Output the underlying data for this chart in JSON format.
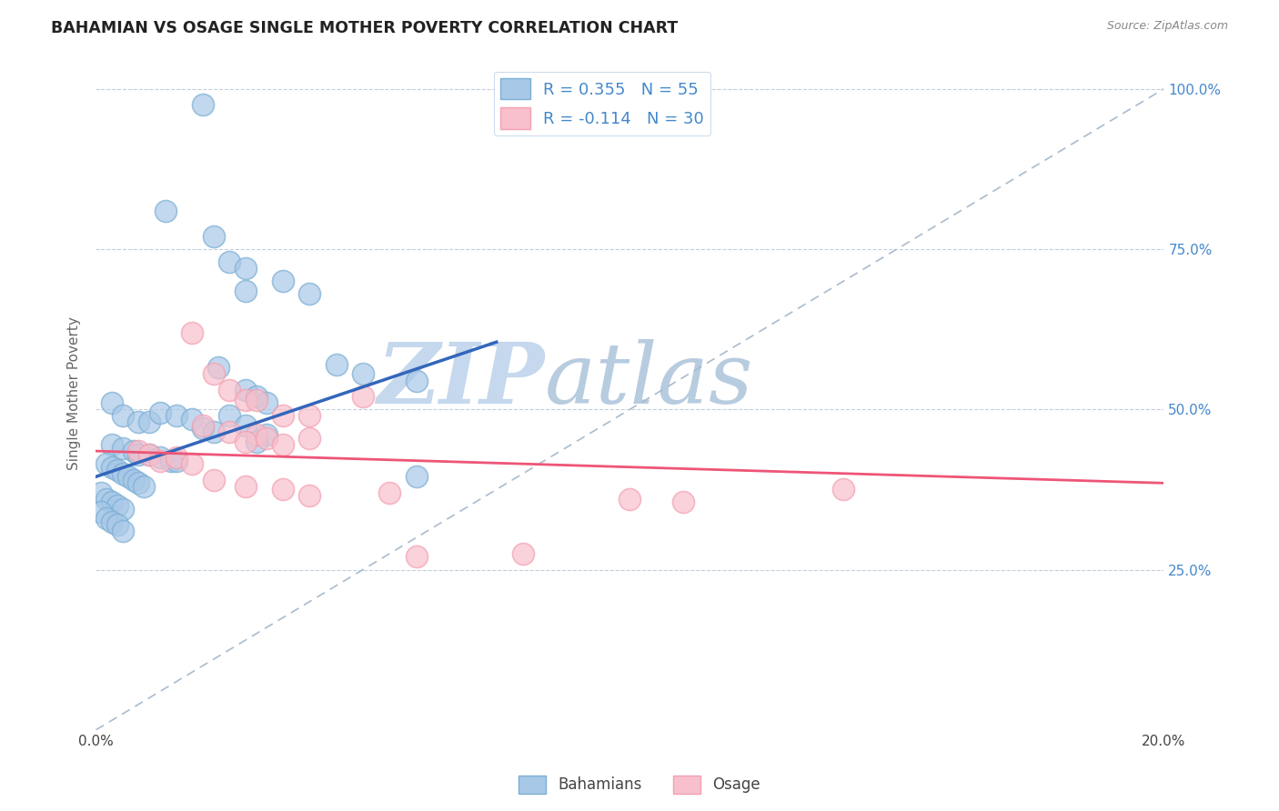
{
  "title": "BAHAMIAN VS OSAGE SINGLE MOTHER POVERTY CORRELATION CHART",
  "source": "Source: ZipAtlas.com",
  "ylabel": "Single Mother Poverty",
  "xlim": [
    0.0,
    0.2
  ],
  "ylim": [
    0.0,
    1.05
  ],
  "legend_label1": "Bahamians",
  "legend_label2": "Osage",
  "blue_color": "#7BAFD4",
  "pink_color": "#F4A0B0",
  "blue_scatter_face": "#A8C8E8",
  "pink_scatter_face": "#F8C0CC",
  "blue_line_color": "#3366BB",
  "pink_line_color": "#EE5577",
  "dashed_line_color": "#AABBCC",
  "title_color": "#222222",
  "right_yaxis_color": "#4488CC",
  "watermark_color": "#D8E8F4",
  "R_blue": 0.355,
  "N_blue": 55,
  "R_pink": -0.114,
  "N_pink": 30,
  "blue_line_x": [
    0.0,
    0.075
  ],
  "blue_line_y": [
    0.395,
    0.605
  ],
  "pink_line_x": [
    0.0,
    0.2
  ],
  "pink_line_y": [
    0.435,
    0.385
  ],
  "blue_scatter": [
    [
      0.02,
      0.975
    ],
    [
      0.013,
      0.81
    ],
    [
      0.022,
      0.77
    ],
    [
      0.025,
      0.73
    ],
    [
      0.028,
      0.72
    ],
    [
      0.028,
      0.685
    ],
    [
      0.035,
      0.7
    ],
    [
      0.04,
      0.68
    ],
    [
      0.045,
      0.57
    ],
    [
      0.05,
      0.555
    ],
    [
      0.023,
      0.565
    ],
    [
      0.06,
      0.545
    ],
    [
      0.028,
      0.53
    ],
    [
      0.03,
      0.52
    ],
    [
      0.032,
      0.51
    ],
    [
      0.003,
      0.51
    ],
    [
      0.005,
      0.49
    ],
    [
      0.008,
      0.48
    ],
    [
      0.01,
      0.48
    ],
    [
      0.012,
      0.495
    ],
    [
      0.015,
      0.49
    ],
    [
      0.018,
      0.485
    ],
    [
      0.02,
      0.47
    ],
    [
      0.022,
      0.465
    ],
    [
      0.025,
      0.49
    ],
    [
      0.028,
      0.475
    ],
    [
      0.032,
      0.46
    ],
    [
      0.03,
      0.45
    ],
    [
      0.003,
      0.445
    ],
    [
      0.005,
      0.44
    ],
    [
      0.007,
      0.435
    ],
    [
      0.008,
      0.43
    ],
    [
      0.01,
      0.43
    ],
    [
      0.012,
      0.425
    ],
    [
      0.014,
      0.42
    ],
    [
      0.015,
      0.42
    ],
    [
      0.002,
      0.415
    ],
    [
      0.003,
      0.41
    ],
    [
      0.004,
      0.405
    ],
    [
      0.005,
      0.4
    ],
    [
      0.006,
      0.395
    ],
    [
      0.007,
      0.39
    ],
    [
      0.008,
      0.385
    ],
    [
      0.009,
      0.38
    ],
    [
      0.001,
      0.37
    ],
    [
      0.002,
      0.36
    ],
    [
      0.003,
      0.355
    ],
    [
      0.004,
      0.35
    ],
    [
      0.005,
      0.345
    ],
    [
      0.001,
      0.34
    ],
    [
      0.002,
      0.33
    ],
    [
      0.003,
      0.325
    ],
    [
      0.004,
      0.32
    ],
    [
      0.005,
      0.31
    ],
    [
      0.06,
      0.395
    ]
  ],
  "pink_scatter": [
    [
      0.018,
      0.62
    ],
    [
      0.022,
      0.555
    ],
    [
      0.025,
      0.53
    ],
    [
      0.028,
      0.515
    ],
    [
      0.03,
      0.515
    ],
    [
      0.035,
      0.49
    ],
    [
      0.04,
      0.49
    ],
    [
      0.05,
      0.52
    ],
    [
      0.02,
      0.475
    ],
    [
      0.025,
      0.465
    ],
    [
      0.03,
      0.46
    ],
    [
      0.028,
      0.45
    ],
    [
      0.032,
      0.455
    ],
    [
      0.035,
      0.445
    ],
    [
      0.04,
      0.455
    ],
    [
      0.008,
      0.435
    ],
    [
      0.01,
      0.43
    ],
    [
      0.012,
      0.42
    ],
    [
      0.015,
      0.425
    ],
    [
      0.018,
      0.415
    ],
    [
      0.022,
      0.39
    ],
    [
      0.028,
      0.38
    ],
    [
      0.035,
      0.375
    ],
    [
      0.04,
      0.365
    ],
    [
      0.055,
      0.37
    ],
    [
      0.1,
      0.36
    ],
    [
      0.11,
      0.355
    ],
    [
      0.06,
      0.27
    ],
    [
      0.08,
      0.275
    ],
    [
      0.14,
      0.375
    ]
  ]
}
